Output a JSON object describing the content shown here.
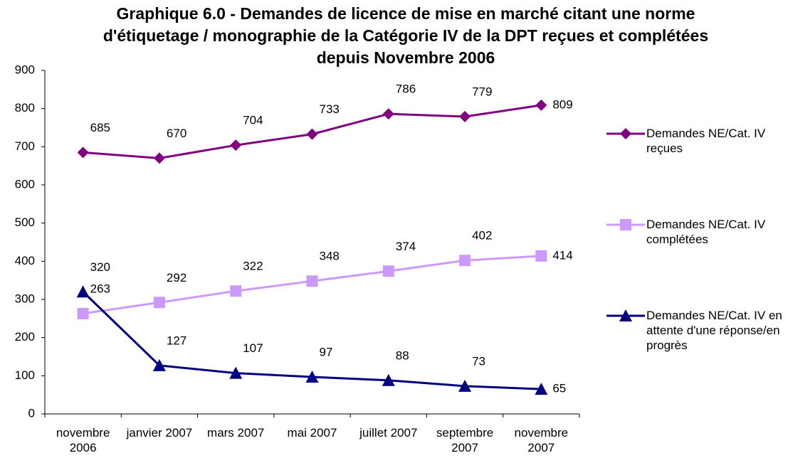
{
  "chart_data": {
    "type": "line",
    "title": "Graphique 6.0 - Demandes de licence de mise en marché citant une norme d'étiquetage / monographie de la Catégorie IV de la DPT reçues et complétées depuis Novembre 2006",
    "categories": [
      "novembre 2006",
      "janvier 2007",
      "mars 2007",
      "mai 2007",
      "juillet 2007",
      "septembre 2007",
      "novembre 2007"
    ],
    "series": [
      {
        "name": "Demandes NE/Cat. IV reçues",
        "color": "#800080",
        "marker": "diamond",
        "values": [
          685,
          670,
          704,
          733,
          786,
          779,
          809
        ]
      },
      {
        "name": "Demandes NE/Cat. IV complétées",
        "color": "#cc99ff",
        "marker": "square",
        "values": [
          263,
          292,
          322,
          348,
          374,
          402,
          414
        ]
      },
      {
        "name": "Demandes NE/Cat. IV en attente d'une réponse/en progrès",
        "color": "#000080",
        "marker": "triangle",
        "values": [
          320,
          127,
          107,
          97,
          88,
          73,
          65
        ]
      }
    ],
    "ylim": [
      0,
      900
    ],
    "yticks": [
      0,
      100,
      200,
      300,
      400,
      500,
      600,
      700,
      800,
      900
    ],
    "grid": false,
    "legend": "right"
  }
}
